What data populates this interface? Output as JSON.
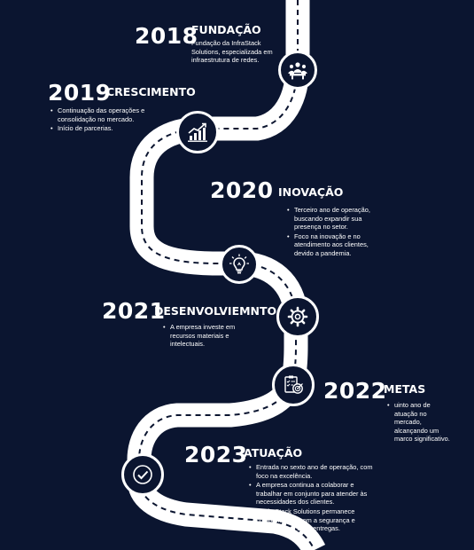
{
  "colors": {
    "background": "#0b1530",
    "road": "#ffffff",
    "road_dash": "#0b1530",
    "text": "#ffffff"
  },
  "milestones": [
    {
      "year": "2018",
      "title": "FUNDAÇÃO",
      "icon": "meeting-people-icon",
      "text": "Fundação da InfraStack Solutions, especializada em infraestrutura de redes."
    },
    {
      "year": "2019",
      "title": "CRESCIMENTO",
      "icon": "growth-chart-icon",
      "bullets": [
        "Continuação das operações e consolidação no mercado.",
        "Início de parcerias."
      ]
    },
    {
      "year": "2020",
      "title": "INOVAÇÃO",
      "icon": "lightbulb-icon",
      "bullets": [
        " Terceiro ano de operação, buscando expandir sua presença no setor.",
        "Foco na inovação e no atendimento aos clientes, devido a pandemia."
      ]
    },
    {
      "year": "2021",
      "title": "DESENVOLVIEMNTO",
      "icon": "gear-icon",
      "bullets": [
        " A empresa investe em recursos materiais e intelectuais."
      ]
    },
    {
      "year": "2022",
      "title": "METAS",
      "icon": "clipboard-target-icon",
      "bullets": [
        "uinto ano de atuação no mercado, alcançando um marco significativo."
      ]
    },
    {
      "year": "2023",
      "title": "ATUAÇÃO",
      "icon": "checkmark-icon",
      "bullets": [
        "Entrada no sexto ano de operação, com foco na excelência.",
        "A empresa continua a colaborar e trabalhar em conjunto para atender às necessidades dos clientes.",
        "A InfraStack Solutions permanece comprometida com a segurança e qualidade em suas entregas."
      ]
    }
  ]
}
